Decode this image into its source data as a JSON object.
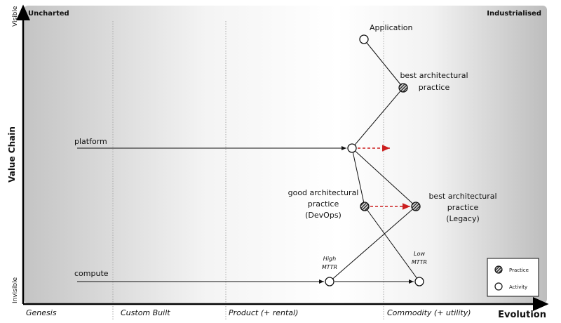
{
  "axes": {
    "y_label": "Value Chain",
    "y_top": "Visible",
    "y_bottom": "Invisible",
    "x_label": "Evolution",
    "stages": [
      "Genesis",
      "Custom Built",
      "Product (+ rental)",
      "Commodity (+ utility)"
    ],
    "corner_left": "Uncharted",
    "corner_right": "Industrialised"
  },
  "nodes": {
    "application": "Application",
    "best_practice_1": "best architectural",
    "best_practice_2": "practice",
    "platform": "platform",
    "good_practice_1": "good architectural",
    "good_practice_2": "practice",
    "good_practice_3": "(DevOps)",
    "legacy_1": "best architectural",
    "legacy_2": "practice",
    "legacy_3": "(Legacy)",
    "compute": "compute",
    "high_mttr_1": "High",
    "high_mttr_2": "MTTR",
    "low_mttr_1": "Low",
    "low_mttr_2": "MTTR"
  },
  "legend": {
    "practice": "Practice",
    "activity": "Activity"
  },
  "colors": {
    "movement_arrow": "#cc1f1f",
    "lines": "#111111",
    "gradient_edge": "#c4c4c4"
  }
}
